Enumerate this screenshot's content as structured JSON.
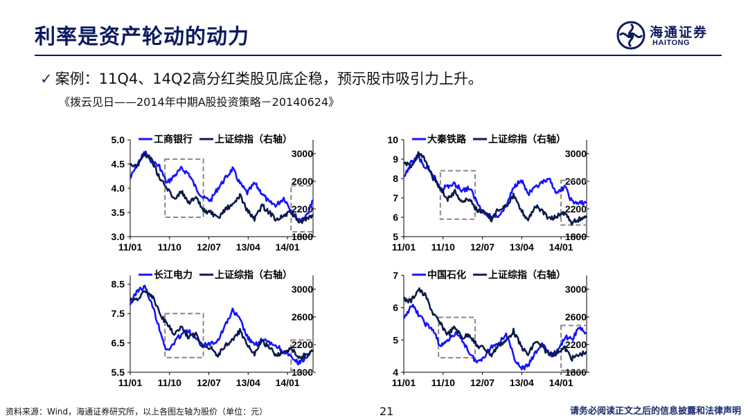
{
  "header": {
    "title": "利率是资产轮动的动力",
    "logo_name": "海通证券",
    "logo_en": "HAITONG"
  },
  "bullet": "案例：11Q4、14Q2高分红类股见底企稳，预示股市吸引力上升。",
  "source": "《拨云见日——2014年中期A股投资策略－20140624》",
  "colors": {
    "stock": "#1414ff",
    "index": "#0b1a4a",
    "box": "#888888",
    "brand": "#0b1a5e"
  },
  "chart_data": [
    {
      "type": "line",
      "legend": [
        "工商银行",
        "上证综指（右轴）"
      ],
      "x_ticks": [
        "11/01",
        "11/10",
        "12/07",
        "13/04",
        "14/01"
      ],
      "y_left": {
        "ticks": [
          "5.0",
          "4.5",
          "4.0",
          "3.5",
          "3.0"
        ],
        "range": [
          3.0,
          5.0
        ]
      },
      "y_right": {
        "ticks": [
          "3000",
          "2600",
          "2200",
          "1800"
        ],
        "range": [
          1800,
          3200
        ]
      },
      "series": [
        {
          "name": "工商银行",
          "axis": "left",
          "color": "#1414ff",
          "x": [
            0.0,
            0.04,
            0.08,
            0.12,
            0.16,
            0.2,
            0.24,
            0.28,
            0.32,
            0.36,
            0.4,
            0.44,
            0.48,
            0.52,
            0.56,
            0.6,
            0.64,
            0.68,
            0.72,
            0.76,
            0.8,
            0.84,
            0.88,
            0.92,
            0.96,
            1.0
          ],
          "values": [
            4.2,
            4.5,
            4.75,
            4.55,
            4.45,
            4.1,
            4.25,
            4.4,
            4.3,
            4.0,
            3.8,
            3.75,
            4.0,
            4.2,
            4.4,
            4.1,
            3.9,
            4.1,
            3.9,
            3.7,
            3.65,
            3.8,
            3.55,
            3.35,
            3.4,
            3.75
          ]
        },
        {
          "name": "上证综指（右轴）",
          "axis": "right",
          "color": "#0b1a4a",
          "x": [
            0.0,
            0.04,
            0.08,
            0.12,
            0.16,
            0.2,
            0.24,
            0.28,
            0.32,
            0.36,
            0.4,
            0.44,
            0.48,
            0.52,
            0.56,
            0.6,
            0.64,
            0.68,
            0.72,
            0.76,
            0.8,
            0.84,
            0.88,
            0.92,
            0.96,
            1.0
          ],
          "values": [
            2850,
            2830,
            3000,
            2900,
            2650,
            2500,
            2350,
            2450,
            2300,
            2350,
            2180,
            2150,
            2050,
            2200,
            2250,
            2400,
            2180,
            2050,
            2250,
            2150,
            2050,
            2100,
            2150,
            2000,
            2050,
            2100
          ]
        }
      ],
      "highlight_boxes": [
        {
          "x": [
            0.19,
            0.4
          ],
          "y": [
            3.4,
            4.6
          ]
        },
        {
          "x": [
            0.88,
            1.0
          ],
          "y": [
            3.1,
            4.05
          ]
        }
      ]
    },
    {
      "type": "line",
      "legend": [
        "大秦铁路",
        "上证综指（右轴）"
      ],
      "x_ticks": [
        "11/01",
        "11/10",
        "12/07",
        "13/04",
        "14/01"
      ],
      "y_left": {
        "ticks": [
          "10",
          "9",
          "8",
          "7",
          "6",
          "5"
        ],
        "range": [
          5,
          10
        ]
      },
      "y_right": {
        "ticks": [
          "3000",
          "2600",
          "2200",
          "1800"
        ],
        "range": [
          1800,
          3200
        ]
      },
      "series": [
        {
          "name": "大秦铁路",
          "axis": "left",
          "color": "#1414ff",
          "x": [
            0.0,
            0.04,
            0.08,
            0.12,
            0.16,
            0.2,
            0.24,
            0.28,
            0.32,
            0.36,
            0.4,
            0.44,
            0.48,
            0.52,
            0.56,
            0.6,
            0.64,
            0.68,
            0.72,
            0.76,
            0.8,
            0.84,
            0.88,
            0.92,
            0.96,
            1.0
          ],
          "values": [
            8.0,
            8.8,
            9.1,
            8.5,
            8.2,
            7.5,
            7.6,
            7.7,
            7.4,
            7.5,
            6.8,
            6.2,
            6.0,
            6.1,
            6.6,
            7.5,
            8.0,
            7.2,
            7.5,
            7.8,
            7.9,
            7.2,
            7.6,
            6.8,
            6.7,
            6.8
          ]
        },
        {
          "name": "上证综指（右轴）",
          "axis": "right",
          "color": "#0b1a4a",
          "x": [
            0.0,
            0.04,
            0.08,
            0.12,
            0.16,
            0.2,
            0.24,
            0.28,
            0.32,
            0.36,
            0.4,
            0.44,
            0.48,
            0.52,
            0.56,
            0.6,
            0.64,
            0.68,
            0.72,
            0.76,
            0.8,
            0.84,
            0.88,
            0.92,
            0.96,
            1.0
          ],
          "values": [
            2850,
            2830,
            3000,
            2900,
            2650,
            2500,
            2350,
            2450,
            2300,
            2350,
            2180,
            2150,
            2050,
            2200,
            2250,
            2400,
            2180,
            2050,
            2250,
            2150,
            2050,
            2100,
            2150,
            2000,
            2050,
            2100
          ]
        }
      ],
      "highlight_boxes": [
        {
          "x": [
            0.2,
            0.39
          ],
          "y": [
            5.9,
            8.4
          ]
        },
        {
          "x": [
            0.86,
            1.0
          ],
          "y": [
            5.6,
            7.9
          ]
        }
      ]
    },
    {
      "type": "line",
      "legend": [
        "长江电力",
        "上证综指（右轴）"
      ],
      "x_ticks": [
        "11/01",
        "11/10",
        "12/07",
        "13/04",
        "14/01"
      ],
      "y_left": {
        "ticks": [
          "8.5",
          "7.5",
          "6.5",
          "5.5"
        ],
        "range": [
          5.5,
          8.8
        ]
      },
      "y_right": {
        "ticks": [
          "3000",
          "2600",
          "2200",
          "1800"
        ],
        "range": [
          1800,
          3200
        ]
      },
      "series": [
        {
          "name": "长江电力",
          "axis": "left",
          "color": "#1414ff",
          "x": [
            0.0,
            0.04,
            0.08,
            0.12,
            0.16,
            0.2,
            0.24,
            0.28,
            0.32,
            0.36,
            0.4,
            0.44,
            0.48,
            0.52,
            0.56,
            0.6,
            0.64,
            0.68,
            0.72,
            0.76,
            0.8,
            0.84,
            0.88,
            0.92,
            0.96,
            1.0
          ],
          "values": [
            7.8,
            8.3,
            8.4,
            7.8,
            7.0,
            6.2,
            6.5,
            6.8,
            6.9,
            6.6,
            6.4,
            6.5,
            6.6,
            7.1,
            7.6,
            7.3,
            6.7,
            6.4,
            6.6,
            6.5,
            6.4,
            6.2,
            6.0,
            5.8,
            6.0,
            6.2
          ]
        },
        {
          "name": "上证综指（右轴）",
          "axis": "right",
          "color": "#0b1a4a",
          "x": [
            0.0,
            0.04,
            0.08,
            0.12,
            0.16,
            0.2,
            0.24,
            0.28,
            0.32,
            0.36,
            0.4,
            0.44,
            0.48,
            0.52,
            0.56,
            0.6,
            0.64,
            0.68,
            0.72,
            0.76,
            0.8,
            0.84,
            0.88,
            0.92,
            0.96,
            1.0
          ],
          "values": [
            2850,
            2830,
            3000,
            2900,
            2650,
            2500,
            2350,
            2450,
            2300,
            2350,
            2180,
            2150,
            2050,
            2200,
            2250,
            2400,
            2180,
            2050,
            2250,
            2150,
            2050,
            2100,
            2150,
            2000,
            2050,
            2100
          ]
        }
      ],
      "highlight_boxes": [
        {
          "x": [
            0.19,
            0.4
          ],
          "y": [
            6.0,
            7.5
          ]
        },
        {
          "x": [
            0.88,
            1.0
          ],
          "y": [
            5.5,
            6.6
          ]
        }
      ]
    },
    {
      "type": "line",
      "legend": [
        "中国石化",
        "上证综指（右轴）"
      ],
      "x_ticks": [
        "11/01",
        "11/10",
        "12/07",
        "13/04",
        "14/01"
      ],
      "y_left": {
        "ticks": [
          "7",
          "6",
          "5",
          "4"
        ],
        "range": [
          4,
          7
        ]
      },
      "y_right": {
        "ticks": [
          "3000",
          "2600",
          "2200",
          "1800"
        ],
        "range": [
          1800,
          3200
        ]
      },
      "series": [
        {
          "name": "中国石化",
          "axis": "left",
          "color": "#1414ff",
          "x": [
            0.0,
            0.04,
            0.08,
            0.12,
            0.16,
            0.2,
            0.24,
            0.28,
            0.32,
            0.36,
            0.4,
            0.44,
            0.48,
            0.52,
            0.56,
            0.6,
            0.64,
            0.68,
            0.72,
            0.76,
            0.8,
            0.84,
            0.88,
            0.92,
            0.96,
            1.0
          ],
          "values": [
            5.6,
            6.1,
            5.8,
            5.5,
            5.3,
            4.8,
            5.0,
            5.2,
            5.0,
            4.6,
            4.3,
            4.5,
            4.8,
            4.9,
            5.2,
            4.5,
            4.1,
            4.2,
            4.6,
            4.9,
            4.5,
            4.6,
            5.1,
            5.0,
            5.4,
            5.2
          ]
        },
        {
          "name": "上证综指（右轴）",
          "axis": "right",
          "color": "#0b1a4a",
          "x": [
            0.0,
            0.04,
            0.08,
            0.12,
            0.16,
            0.2,
            0.24,
            0.28,
            0.32,
            0.36,
            0.4,
            0.44,
            0.48,
            0.52,
            0.56,
            0.6,
            0.64,
            0.68,
            0.72,
            0.76,
            0.8,
            0.84,
            0.88,
            0.92,
            0.96,
            1.0
          ],
          "values": [
            2850,
            2830,
            3000,
            2900,
            2650,
            2500,
            2350,
            2450,
            2300,
            2350,
            2180,
            2150,
            2050,
            2200,
            2250,
            2400,
            2180,
            2050,
            2250,
            2150,
            2050,
            2100,
            2150,
            2000,
            2050,
            2100
          ]
        }
      ],
      "highlight_boxes": [
        {
          "x": [
            0.19,
            0.39
          ],
          "y": [
            4.45,
            5.7
          ]
        },
        {
          "x": [
            0.86,
            1.0
          ],
          "y": [
            4.05,
            5.45
          ]
        }
      ]
    }
  ],
  "footer": {
    "note": "资料来源：Wind，海通证券研究所，以上各图左轴为股价（单位：元）",
    "page": "21",
    "disclaimer": "请务必阅读正文之后的信息披露和法律声明"
  }
}
